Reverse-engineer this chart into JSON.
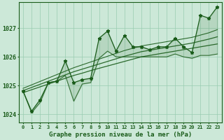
{
  "title": "Graphe pression niveau de la mer (hPa)",
  "bg_color": "#cce8d8",
  "grid_color": "#99ccb0",
  "line_color": "#1a5c1a",
  "hours": [
    0,
    1,
    2,
    3,
    4,
    5,
    6,
    7,
    8,
    9,
    10,
    11,
    12,
    13,
    14,
    15,
    16,
    17,
    18,
    19,
    20,
    21,
    22,
    23
  ],
  "pressure_main": [
    1024.8,
    1024.1,
    1024.5,
    1025.1,
    1025.15,
    1025.85,
    1025.1,
    1025.2,
    1025.25,
    1026.65,
    1026.9,
    1026.2,
    1026.75,
    1026.35,
    1026.35,
    1026.25,
    1026.35,
    1026.35,
    1026.65,
    1026.35,
    1026.15,
    1027.45,
    1027.35,
    1027.75
  ],
  "pressure_low": [
    1024.8,
    1024.05,
    1024.4,
    1025.1,
    1025.15,
    1025.35,
    1024.45,
    1025.05,
    1025.1,
    1025.95,
    1026.2,
    1026.0,
    1026.0,
    1026.0,
    1026.0,
    1026.0,
    1026.0,
    1026.0,
    1026.1,
    1026.0,
    1025.95,
    1026.05,
    1026.05,
    1026.1
  ],
  "trend_low": [
    1024.75,
    1024.85,
    1024.95,
    1025.05,
    1025.15,
    1025.25,
    1025.35,
    1025.43,
    1025.52,
    1025.6,
    1025.68,
    1025.76,
    1025.84,
    1025.92,
    1026.0,
    1026.05,
    1026.1,
    1026.15,
    1026.2,
    1026.25,
    1026.3,
    1026.35,
    1026.4,
    1026.45
  ],
  "trend_mid": [
    1024.82,
    1024.93,
    1025.04,
    1025.15,
    1025.26,
    1025.37,
    1025.48,
    1025.57,
    1025.66,
    1025.75,
    1025.84,
    1025.93,
    1026.02,
    1026.1,
    1026.18,
    1026.23,
    1026.28,
    1026.33,
    1026.38,
    1026.43,
    1026.48,
    1026.55,
    1026.62,
    1026.7
  ],
  "trend_high": [
    1024.9,
    1025.02,
    1025.14,
    1025.26,
    1025.38,
    1025.5,
    1025.62,
    1025.72,
    1025.82,
    1025.92,
    1026.02,
    1026.12,
    1026.22,
    1026.3,
    1026.38,
    1026.43,
    1026.48,
    1026.53,
    1026.58,
    1026.63,
    1026.68,
    1026.76,
    1026.84,
    1026.95
  ],
  "ylim": [
    1023.7,
    1027.9
  ],
  "yticks": [
    1024,
    1025,
    1026,
    1027
  ],
  "marker_size": 3.5,
  "lw_main": 0.9,
  "lw_low": 0.75,
  "lw_trend": 0.9
}
